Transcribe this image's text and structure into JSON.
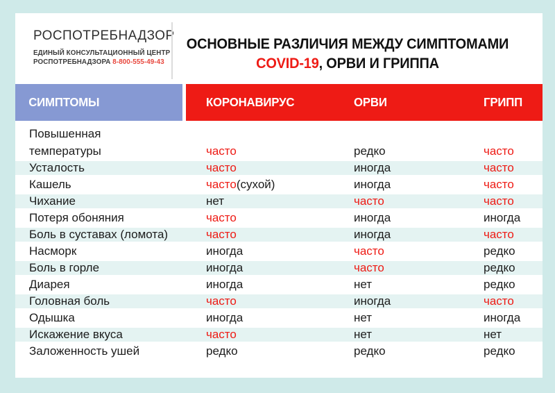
{
  "colors": {
    "outer_background": "#cfeae9",
    "card_background": "#ffffff",
    "header_blue": "#8699d3",
    "accent_red": "#ee1b15",
    "phone_red": "#e8463c",
    "stripe_teal": "#e4f3f2",
    "text_black": "#1c1c1c"
  },
  "header": {
    "org_name": "РОСПОТРЕБНАДЗОР",
    "org_subtitle_line1": "ЕДИНЫЙ КОНСУЛЬТАЦИОННЫЙ ЦЕНТР",
    "org_subtitle_line2": "РОСПОТРЕБНАДЗОРА",
    "phone": "8-800-555-49-43",
    "title_line1": "ОСНОВНЫЕ РАЗЛИЧИЯ МЕЖДУ СИМПТОМАМИ",
    "title_covid": "COVID-19",
    "title_line2_rest": ", ОРВИ И ГРИППА"
  },
  "table": {
    "symptom_header": "СИМПТОМЫ",
    "columns": [
      "КОРОНАВИРУС",
      "ОРВИ",
      "ГРИПП"
    ],
    "rows": [
      {
        "symptom": "Повышенная температуры",
        "symptom_lines": [
          "Повышенная",
          "температуры"
        ],
        "two_line": true,
        "values": [
          {
            "text": "часто",
            "red": true
          },
          {
            "text": "редко",
            "red": false
          },
          {
            "text": "часто",
            "red": true
          }
        ]
      },
      {
        "symptom": "Усталость",
        "values": [
          {
            "text": "часто",
            "red": true
          },
          {
            "text": "иногда",
            "red": false
          },
          {
            "text": "часто",
            "red": true
          }
        ]
      },
      {
        "symptom": "Кашель",
        "values": [
          {
            "text": "часто",
            "red": true,
            "suffix": "(сухой)"
          },
          {
            "text": "иногда",
            "red": false
          },
          {
            "text": "часто",
            "red": true
          }
        ]
      },
      {
        "symptom": "Чихание",
        "values": [
          {
            "text": "нет",
            "red": false
          },
          {
            "text": "часто",
            "red": true
          },
          {
            "text": "часто",
            "red": true
          }
        ]
      },
      {
        "symptom": "Потеря обоняния",
        "values": [
          {
            "text": "часто",
            "red": true
          },
          {
            "text": "иногда",
            "red": false
          },
          {
            "text": "иногда",
            "red": false
          }
        ]
      },
      {
        "symptom": "Боль в суставах (ломота)",
        "values": [
          {
            "text": "часто",
            "red": true
          },
          {
            "text": "иногда",
            "red": false
          },
          {
            "text": "часто",
            "red": true
          }
        ]
      },
      {
        "symptom": "Насморк",
        "values": [
          {
            "text": "иногда",
            "red": false
          },
          {
            "text": "часто",
            "red": true
          },
          {
            "text": "редко",
            "red": false
          }
        ]
      },
      {
        "symptom": "Боль в горле",
        "values": [
          {
            "text": "иногда",
            "red": false
          },
          {
            "text": "часто",
            "red": true
          },
          {
            "text": "редко",
            "red": false
          }
        ]
      },
      {
        "symptom": "Диарея",
        "values": [
          {
            "text": "иногда",
            "red": false
          },
          {
            "text": "нет",
            "red": false
          },
          {
            "text": "редко",
            "red": false
          }
        ]
      },
      {
        "symptom": "Головная боль",
        "values": [
          {
            "text": "часто",
            "red": true
          },
          {
            "text": "иногда",
            "red": false
          },
          {
            "text": "часто",
            "red": true
          }
        ]
      },
      {
        "symptom": "Одышка",
        "values": [
          {
            "text": "иногда",
            "red": false
          },
          {
            "text": "нет",
            "red": false
          },
          {
            "text": "иногда",
            "red": false
          }
        ]
      },
      {
        "symptom": "Искажение вкуса",
        "values": [
          {
            "text": "часто",
            "red": true
          },
          {
            "text": "нет",
            "red": false
          },
          {
            "text": "нет",
            "red": false
          }
        ]
      },
      {
        "symptom": "Заложенность ушей",
        "values": [
          {
            "text": "редко",
            "red": false
          },
          {
            "text": "редко",
            "red": false
          },
          {
            "text": "редко",
            "red": false
          }
        ]
      }
    ]
  }
}
